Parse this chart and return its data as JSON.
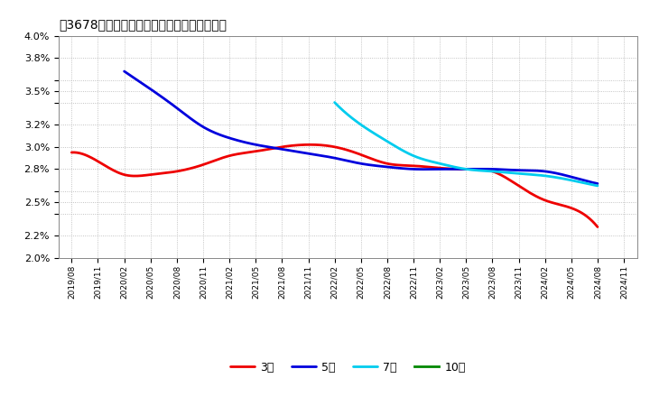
{
  "title": "［3678］　経常利益マージンの平均値の推移",
  "background_color": "#ffffff",
  "plot_bg_color": "#ffffff",
  "grid_color": "#aaaaaa",
  "line_3y_color": "#ee0000",
  "line_5y_color": "#0000dd",
  "line_7y_color": "#00ccee",
  "line_10y_color": "#008800",
  "ylim": [
    0.02,
    0.04
  ],
  "yticks_labeled": [
    0.02,
    0.022,
    0.025,
    0.028,
    0.03,
    0.032,
    0.035,
    0.038,
    0.04
  ],
  "yticks_all": [
    0.02,
    0.022,
    0.024,
    0.025,
    0.026,
    0.028,
    0.03,
    0.032,
    0.034,
    0.035,
    0.036,
    0.038,
    0.04
  ],
  "xtick_labels": [
    "2019/08",
    "2019/11",
    "2020/02",
    "2020/05",
    "2020/08",
    "2020/11",
    "2021/02",
    "2021/05",
    "2021/08",
    "2021/11",
    "2022/02",
    "2022/05",
    "2022/08",
    "2022/11",
    "2023/02",
    "2023/05",
    "2023/08",
    "2023/11",
    "2024/02",
    "2024/05",
    "2024/08",
    "2024/11"
  ],
  "series_3y": [
    0.0295,
    0.0287,
    0.0275,
    0.0275,
    0.0278,
    0.0284,
    0.0292,
    0.0296,
    0.03,
    0.0302,
    0.03,
    0.0293,
    0.0285,
    0.0283,
    0.0281,
    0.028,
    0.0278,
    0.0265,
    0.0252,
    0.0245,
    0.0228,
    null
  ],
  "series_5y": [
    null,
    null,
    0.0368,
    0.0352,
    0.0335,
    0.0318,
    0.0308,
    0.0302,
    0.0298,
    0.0294,
    0.029,
    0.0285,
    0.0282,
    0.028,
    0.028,
    0.028,
    0.028,
    0.0279,
    0.0278,
    0.0273,
    0.0267,
    null
  ],
  "series_7y": [
    null,
    null,
    null,
    null,
    null,
    null,
    null,
    null,
    null,
    null,
    0.034,
    0.032,
    0.0305,
    0.0292,
    0.0285,
    0.028,
    0.0278,
    0.0276,
    0.0274,
    0.027,
    0.0265,
    null
  ],
  "series_10y": [
    null,
    null,
    null,
    null,
    null,
    null,
    null,
    null,
    null,
    null,
    null,
    null,
    null,
    null,
    null,
    null,
    null,
    null,
    null,
    null,
    null,
    null
  ],
  "legend_labels": [
    "3年",
    "5年",
    "7年",
    "10年"
  ],
  "legend_colors": [
    "#ee0000",
    "#0000dd",
    "#00ccee",
    "#008800"
  ]
}
